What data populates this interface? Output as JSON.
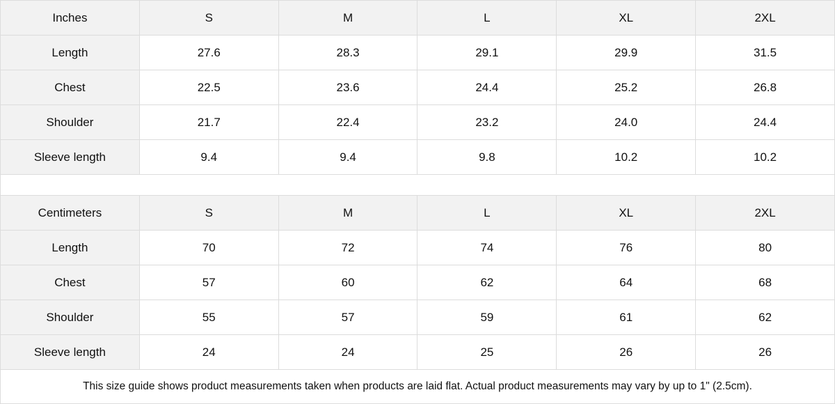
{
  "tables": [
    {
      "unit": "Inches",
      "sizes": [
        "S",
        "M",
        "L",
        "XL",
        "2XL"
      ],
      "rows": [
        {
          "label": "Length",
          "values": [
            "27.6",
            "28.3",
            "29.1",
            "29.9",
            "31.5"
          ]
        },
        {
          "label": "Chest",
          "values": [
            "22.5",
            "23.6",
            "24.4",
            "25.2",
            "26.8"
          ]
        },
        {
          "label": "Shoulder",
          "values": [
            "21.7",
            "22.4",
            "23.2",
            "24.0",
            "24.4"
          ]
        },
        {
          "label": "Sleeve length",
          "values": [
            "9.4",
            "9.4",
            "9.8",
            "10.2",
            "10.2"
          ]
        }
      ]
    },
    {
      "unit": "Centimeters",
      "sizes": [
        "S",
        "M",
        "L",
        "XL",
        "2XL"
      ],
      "rows": [
        {
          "label": "Length",
          "values": [
            "70",
            "72",
            "74",
            "76",
            "80"
          ]
        },
        {
          "label": "Chest",
          "values": [
            "57",
            "60",
            "62",
            "64",
            "68"
          ]
        },
        {
          "label": "Shoulder",
          "values": [
            "55",
            "57",
            "59",
            "61",
            "62"
          ]
        },
        {
          "label": "Sleeve length",
          "values": [
            "24",
            "24",
            "25",
            "26",
            "26"
          ]
        }
      ]
    }
  ],
  "note": "This size guide shows product measurements taken when products are laid flat.  Actual product measurements may vary by up to 1\" (2.5cm).",
  "colors": {
    "header_bg": "#f2f2f2",
    "border": "#dcdcdc"
  }
}
